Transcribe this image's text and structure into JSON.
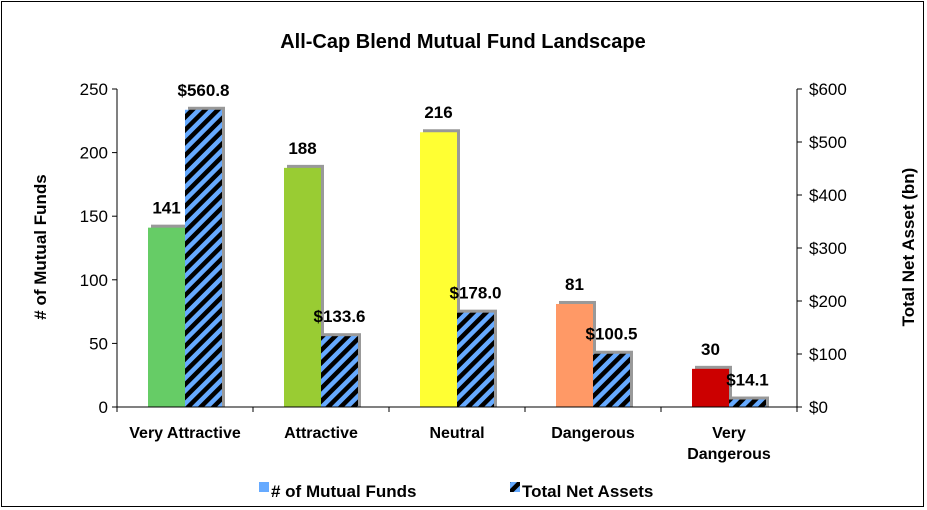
{
  "chart_data": {
    "type": "bar",
    "title": "All-Cap Blend Mutual Fund Landscape",
    "categories": [
      "Very Attractive",
      "Attractive",
      "Neutral",
      "Dangerous",
      "Very Dangerous"
    ],
    "category_lines": [
      [
        "Very Attractive"
      ],
      [
        "Attractive"
      ],
      [
        "Neutral"
      ],
      [
        "Dangerous"
      ],
      [
        "Very",
        "Dangerous"
      ]
    ],
    "series": [
      {
        "name": "# of Mutual Funds",
        "axis": "left",
        "values": [
          141,
          188,
          216,
          81,
          30
        ],
        "labels": [
          "141",
          "188",
          "216",
          "81",
          "30"
        ],
        "colors": [
          "#66cc66",
          "#99cc33",
          "#ffff33",
          "#ff9966",
          "#cc0000"
        ],
        "legend_color": "#66aaff"
      },
      {
        "name": "Total Net Assets",
        "axis": "right",
        "values": [
          560.8,
          133.6,
          178.0,
          100.5,
          14.1
        ],
        "labels": [
          "$560.8",
          "$133.6",
          "$178.0",
          "$100.5",
          "$14.1"
        ],
        "pattern": "diagonal-stripes",
        "stripe_colors": [
          "#000000",
          "#66aaff"
        ]
      }
    ],
    "ylabel": "# of Mutual Funds",
    "y2label": "Total Net Asset (bn)",
    "ylim": [
      0,
      250
    ],
    "y2lim": [
      0,
      600
    ],
    "yticks": [
      "0",
      "50",
      "100",
      "150",
      "200",
      "250"
    ],
    "y2ticks": [
      "$0",
      "$100",
      "$200",
      "$300",
      "$400",
      "$500",
      "$600"
    ],
    "grid": false,
    "legend_position": "bottom"
  }
}
